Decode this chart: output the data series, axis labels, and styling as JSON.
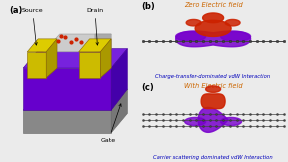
{
  "bg_color": "#ebebeb",
  "panel_a_label": "(a)",
  "panel_b_label": "(b)",
  "panel_c_label": "(c)",
  "title_b": "Zero Electric field",
  "title_c": "With Electric field",
  "subtitle_b": "Charge-transfer-dominated vdW Interaction",
  "subtitle_c": "Carrier scattering dominated vdW Interaction",
  "source_label": "Source",
  "drain_label": "Drain",
  "gate_label": "Gate",
  "title_color": "#cc6600",
  "subtitle_color": "#0000bb",
  "label_color": "#000000",
  "device_purple_front": "#6600cc",
  "device_purple_top": "#7722dd",
  "device_purple_right": "#4400aa",
  "device_yellow_top": "#ddcc00",
  "device_yellow_front": "#ccbb00",
  "device_yellow_right": "#aa9900",
  "device_gray_top": "#bbbbbb",
  "device_gray_front": "#888888",
  "device_gray_right": "#777777",
  "graphene_color": "#444444",
  "blob_orange": "#cc2200",
  "blob_purple": "#7700cc",
  "red_dot": "#cc2200"
}
